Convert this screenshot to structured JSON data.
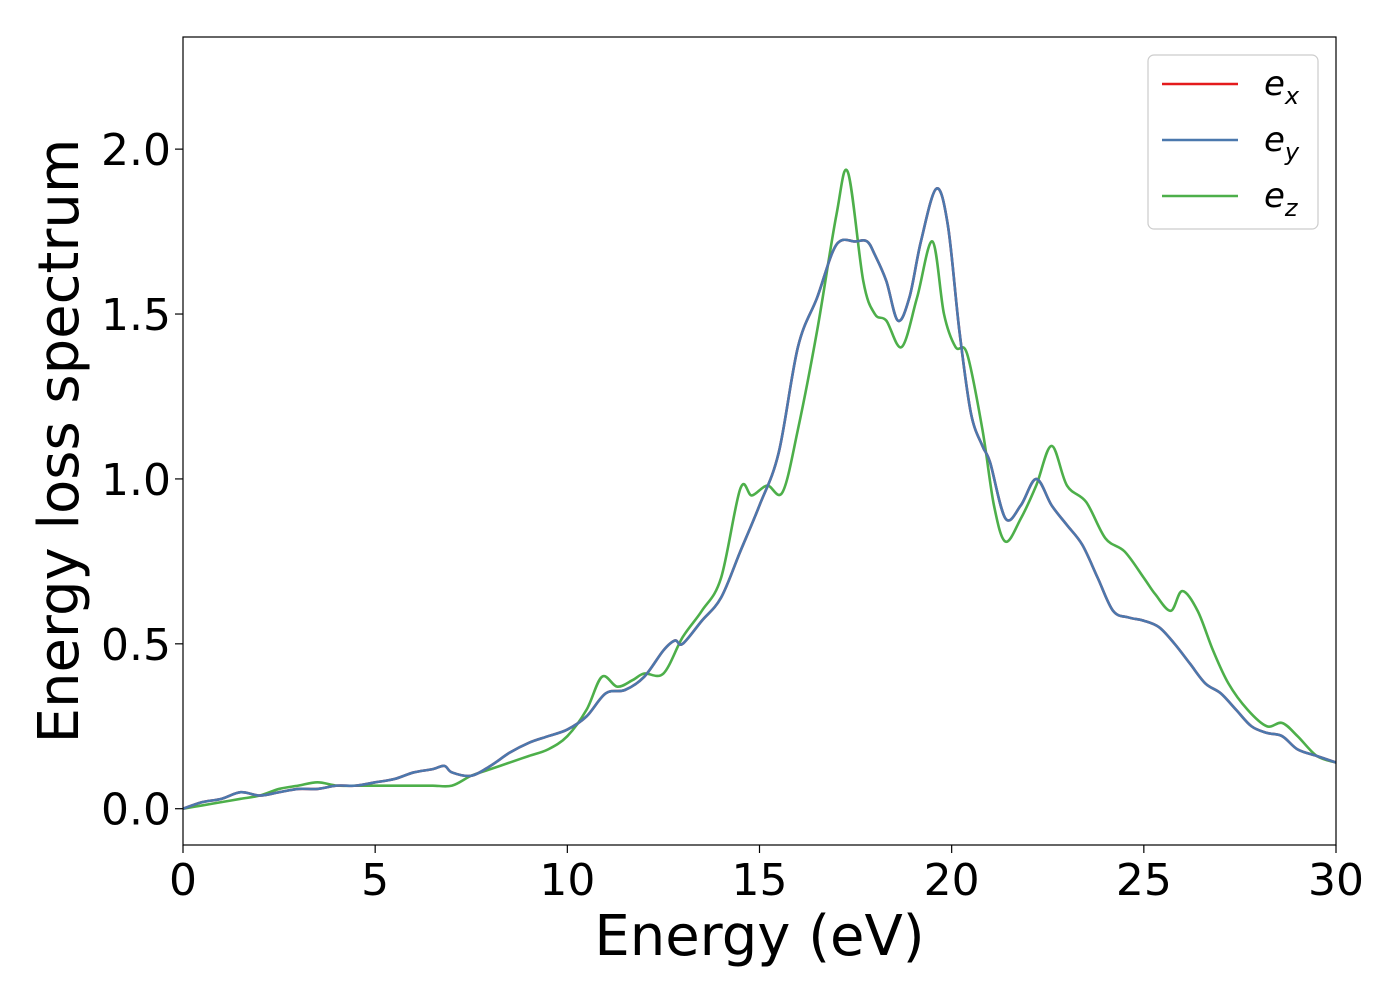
{
  "chart_data": {
    "type": "line",
    "title": "",
    "xlabel": "Energy (eV)",
    "ylabel": "Energy loss spectrum",
    "xlim": [
      0,
      30
    ],
    "ylim": [
      -0.11,
      2.34
    ],
    "xticks": [
      0,
      5,
      10,
      15,
      20,
      25,
      30
    ],
    "xtick_labels": [
      "0",
      "5",
      "10",
      "15",
      "20",
      "25",
      "30"
    ],
    "yticks": [
      0.0,
      0.5,
      1.0,
      1.5,
      2.0
    ],
    "ytick_labels": [
      "0.0",
      "0.5",
      "1.0",
      "1.5",
      "2.0"
    ],
    "grid": false,
    "legend": {
      "placement": "top-right"
    },
    "series": [
      {
        "name": "e_x",
        "legend_base": "e",
        "legend_sub": "x",
        "color": "#e41a1c",
        "x": [
          0,
          0.5,
          1,
          1.5,
          2,
          2.5,
          3,
          3.5,
          4,
          4.5,
          5,
          5.5,
          6,
          6.5,
          6.8,
          7,
          7.5,
          8,
          8.5,
          9,
          9.5,
          10,
          10.5,
          11,
          11.5,
          12,
          12.5,
          12.8,
          13,
          13.5,
          14,
          14.5,
          15,
          15.5,
          16,
          16.5,
          17,
          17.5,
          17.8,
          18,
          18.3,
          18.6,
          18.9,
          19.2,
          19.6,
          19.9,
          20.2,
          20.5,
          20.8,
          21,
          21.4,
          21.8,
          22.2,
          22.6,
          23,
          23.4,
          23.8,
          24.2,
          24.6,
          25,
          25.4,
          25.8,
          26.2,
          26.6,
          27,
          27.4,
          27.8,
          28.2,
          28.6,
          29,
          29.5,
          30
        ],
        "y": [
          0.0,
          0.02,
          0.03,
          0.05,
          0.04,
          0.05,
          0.06,
          0.06,
          0.07,
          0.07,
          0.08,
          0.09,
          0.11,
          0.12,
          0.13,
          0.11,
          0.1,
          0.13,
          0.17,
          0.2,
          0.22,
          0.24,
          0.28,
          0.35,
          0.36,
          0.4,
          0.48,
          0.51,
          0.5,
          0.57,
          0.64,
          0.78,
          0.92,
          1.08,
          1.4,
          1.55,
          1.71,
          1.72,
          1.72,
          1.68,
          1.6,
          1.48,
          1.55,
          1.72,
          1.88,
          1.77,
          1.45,
          1.2,
          1.1,
          1.05,
          0.88,
          0.92,
          1.0,
          0.92,
          0.86,
          0.8,
          0.7,
          0.6,
          0.58,
          0.57,
          0.55,
          0.5,
          0.44,
          0.38,
          0.35,
          0.3,
          0.25,
          0.23,
          0.22,
          0.18,
          0.16,
          0.14
        ]
      },
      {
        "name": "e_y",
        "legend_base": "e",
        "legend_sub": "y",
        "color": "#4b78ad",
        "x": [
          0,
          0.5,
          1,
          1.5,
          2,
          2.5,
          3,
          3.5,
          4,
          4.5,
          5,
          5.5,
          6,
          6.5,
          6.8,
          7,
          7.5,
          8,
          8.5,
          9,
          9.5,
          10,
          10.5,
          11,
          11.5,
          12,
          12.5,
          12.8,
          13,
          13.5,
          14,
          14.5,
          15,
          15.5,
          16,
          16.5,
          17,
          17.5,
          17.8,
          18,
          18.3,
          18.6,
          18.9,
          19.2,
          19.6,
          19.9,
          20.2,
          20.5,
          20.8,
          21,
          21.4,
          21.8,
          22.2,
          22.6,
          23,
          23.4,
          23.8,
          24.2,
          24.6,
          25,
          25.4,
          25.8,
          26.2,
          26.6,
          27,
          27.4,
          27.8,
          28.2,
          28.6,
          29,
          29.5,
          30
        ],
        "y": [
          0.0,
          0.02,
          0.03,
          0.05,
          0.04,
          0.05,
          0.06,
          0.06,
          0.07,
          0.07,
          0.08,
          0.09,
          0.11,
          0.12,
          0.13,
          0.11,
          0.1,
          0.13,
          0.17,
          0.2,
          0.22,
          0.24,
          0.28,
          0.35,
          0.36,
          0.4,
          0.48,
          0.51,
          0.5,
          0.57,
          0.64,
          0.78,
          0.92,
          1.08,
          1.4,
          1.55,
          1.71,
          1.72,
          1.72,
          1.68,
          1.6,
          1.48,
          1.55,
          1.72,
          1.88,
          1.77,
          1.45,
          1.2,
          1.1,
          1.05,
          0.88,
          0.92,
          1.0,
          0.92,
          0.86,
          0.8,
          0.7,
          0.6,
          0.58,
          0.57,
          0.55,
          0.5,
          0.44,
          0.38,
          0.35,
          0.3,
          0.25,
          0.23,
          0.22,
          0.18,
          0.16,
          0.14
        ]
      },
      {
        "name": "e_z",
        "legend_base": "e",
        "legend_sub": "z",
        "color": "#4daf4a",
        "x": [
          0,
          0.5,
          1,
          1.5,
          2,
          2.5,
          3,
          3.5,
          4,
          4.5,
          5,
          5.5,
          6,
          6.5,
          7,
          7.5,
          8,
          8.5,
          9,
          9.5,
          10,
          10.5,
          10.9,
          11.3,
          11.7,
          12,
          12.5,
          13,
          13.5,
          14,
          14.5,
          14.8,
          15.2,
          15.6,
          16,
          16.5,
          17,
          17.3,
          17.7,
          18,
          18.3,
          18.7,
          19.1,
          19.5,
          19.8,
          20.1,
          20.4,
          20.8,
          21.1,
          21.4,
          21.8,
          22.2,
          22.6,
          23,
          23.5,
          24,
          24.5,
          25,
          25.3,
          25.7,
          26,
          26.4,
          26.8,
          27.2,
          27.7,
          28.2,
          28.6,
          29,
          29.5,
          30
        ],
        "y": [
          0.0,
          0.01,
          0.02,
          0.03,
          0.04,
          0.06,
          0.07,
          0.08,
          0.07,
          0.07,
          0.07,
          0.07,
          0.07,
          0.07,
          0.07,
          0.1,
          0.12,
          0.14,
          0.16,
          0.18,
          0.22,
          0.3,
          0.4,
          0.37,
          0.39,
          0.41,
          0.41,
          0.52,
          0.6,
          0.7,
          0.97,
          0.95,
          0.98,
          0.96,
          1.15,
          1.45,
          1.8,
          1.93,
          1.6,
          1.5,
          1.48,
          1.4,
          1.55,
          1.72,
          1.5,
          1.4,
          1.38,
          1.15,
          0.92,
          0.81,
          0.88,
          0.98,
          1.1,
          0.98,
          0.93,
          0.82,
          0.78,
          0.7,
          0.65,
          0.6,
          0.66,
          0.6,
          0.48,
          0.38,
          0.3,
          0.25,
          0.26,
          0.22,
          0.16,
          0.14
        ]
      }
    ]
  }
}
